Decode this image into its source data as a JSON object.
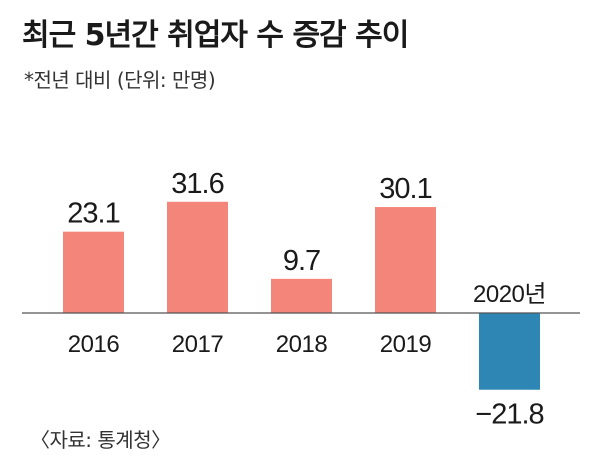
{
  "title": "최근 5년간 취업자 수 증감 추이",
  "subtitle": "*전년 대비 (단위: 만명)",
  "source": "〈자료: 통계청〉",
  "colors": {
    "positive_bar": "#f4857a",
    "negative_bar": "#2e86b5",
    "baseline": "#555555"
  },
  "chart_data": {
    "type": "bar",
    "title": "최근 5년간 취업자 수 증감 추이",
    "subtitle": "*전년 대비 (단위: 만명)",
    "categories": [
      "2016",
      "2017",
      "2018",
      "2019",
      "2020년"
    ],
    "values": [
      23.1,
      31.6,
      9.7,
      30.1,
      -21.8
    ],
    "value_labels": [
      "23.1",
      "31.6",
      "9.7",
      "30.1",
      "−21.8"
    ],
    "unit": "만명",
    "grid": false,
    "legend": "none"
  }
}
